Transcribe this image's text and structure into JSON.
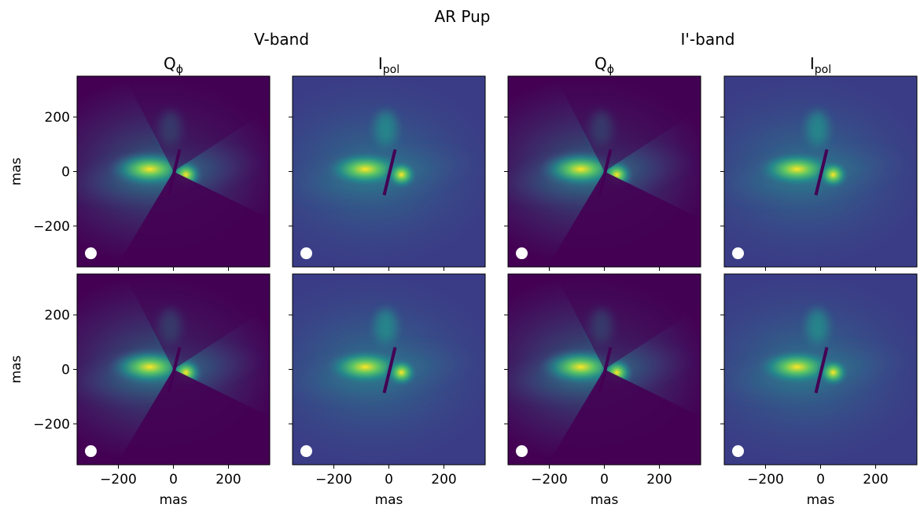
{
  "figure": {
    "suptitle": "AR Pup",
    "bands": [
      "V-band",
      "I'-band"
    ],
    "column_titles": [
      {
        "main": "Q",
        "sub": "ϕ"
      },
      {
        "main": "I",
        "sub": "pol"
      },
      {
        "main": "Q",
        "sub": "ϕ"
      },
      {
        "main": "I",
        "sub": "pol"
      }
    ],
    "xlabel": "mas",
    "ylabel": "mas",
    "colormap": [
      "#440154",
      "#3b528b",
      "#21918c",
      "#5ec962",
      "#fde725"
    ],
    "beam_marker_color": "#ffffff"
  },
  "chart_data": {
    "type": "heatmap",
    "title": "AR Pup",
    "rows": 2,
    "cols": 4,
    "xlim": [
      -350,
      350
    ],
    "ylim": [
      -350,
      350
    ],
    "xticks": [
      -200,
      0,
      200
    ],
    "yticks": [
      -200,
      0,
      200
    ],
    "xtick_labels": [
      "−200",
      "0",
      "200"
    ],
    "ytick_labels": [
      "−200",
      "0",
      "200"
    ],
    "xlabel": "mas",
    "ylabel": "mas",
    "beam_center_mas": [
      -300,
      -300
    ],
    "panels": [
      {
        "row": 0,
        "col": 0,
        "band": "V-band",
        "quantity": "Qϕ"
      },
      {
        "row": 0,
        "col": 1,
        "band": "V-band",
        "quantity": "Ipol"
      },
      {
        "row": 0,
        "col": 2,
        "band": "I'-band",
        "quantity": "Qϕ"
      },
      {
        "row": 0,
        "col": 3,
        "band": "I'-band",
        "quantity": "Ipol"
      },
      {
        "row": 1,
        "col": 0,
        "band": "V-band",
        "quantity": "Qϕ"
      },
      {
        "row": 1,
        "col": 1,
        "band": "V-band",
        "quantity": "Ipol"
      },
      {
        "row": 1,
        "col": 2,
        "band": "I'-band",
        "quantity": "Qϕ"
      },
      {
        "row": 1,
        "col": 3,
        "band": "I'-band",
        "quantity": "Ipol"
      }
    ]
  }
}
